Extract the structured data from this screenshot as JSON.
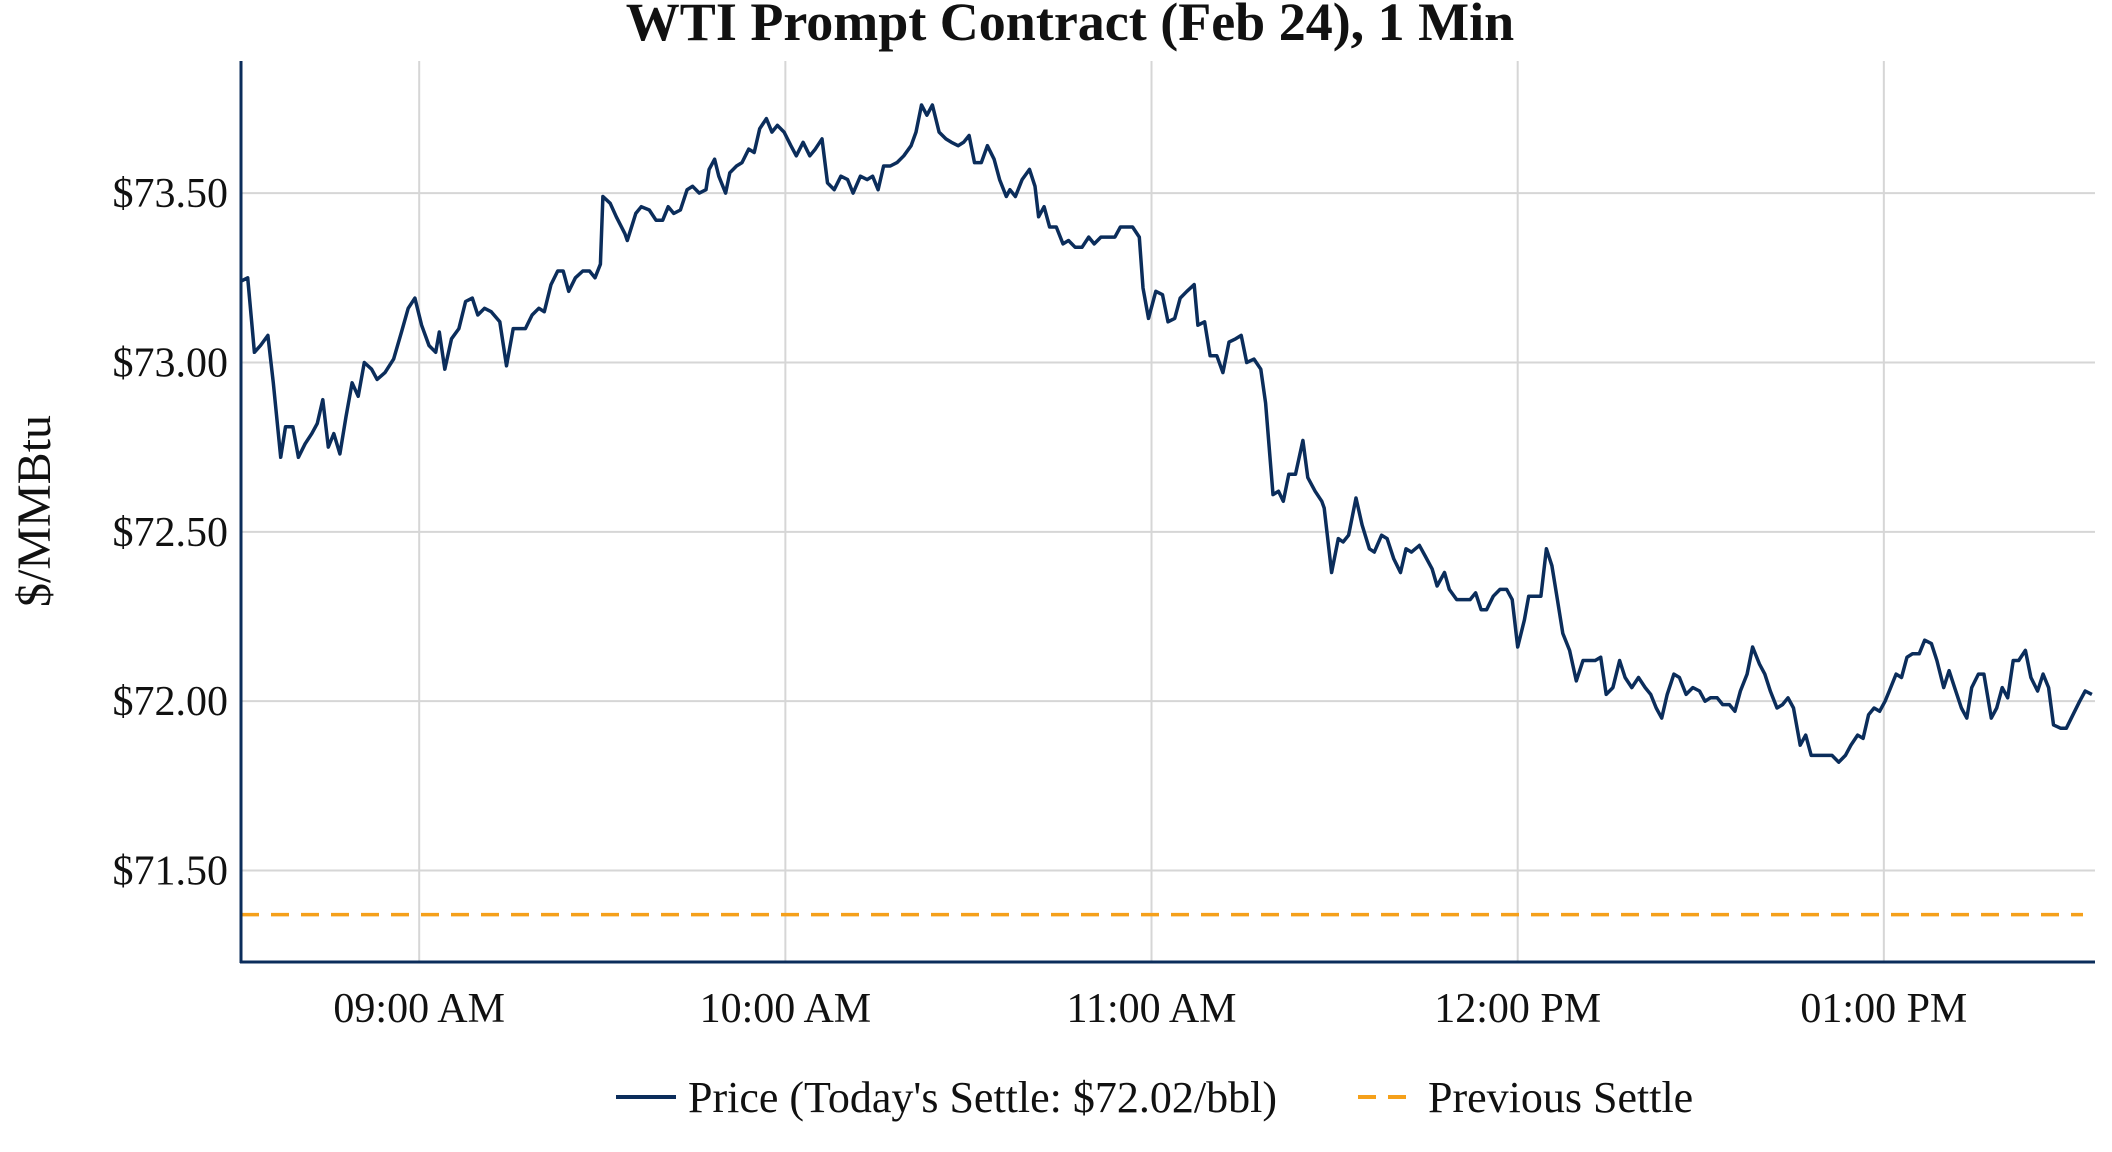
{
  "chart_data": {
    "type": "line",
    "title": "WTI Prompt Contract (Feb 24), 1 Min",
    "xlabel": "",
    "ylabel": "$/MMBtu",
    "x_unit": "minutes after 08:30",
    "xlim": [
      0.8,
      304.6
    ],
    "ylim": [
      71.23,
      73.89
    ],
    "grid": true,
    "legend_position": "bottom-center",
    "x_ticks": [
      {
        "value": 30,
        "label": "09:00 AM"
      },
      {
        "value": 90,
        "label": "10:00 AM"
      },
      {
        "value": 150,
        "label": "11:00 AM"
      },
      {
        "value": 210,
        "label": "12:00 PM"
      },
      {
        "value": 270,
        "label": "01:00 PM"
      }
    ],
    "y_ticks": [
      {
        "value": 71.5,
        "label": "$71.50"
      },
      {
        "value": 72.0,
        "label": "$72.00"
      },
      {
        "value": 72.5,
        "label": "$72.50"
      },
      {
        "value": 73.0,
        "label": "$73.00"
      },
      {
        "value": 73.5,
        "label": "$73.50"
      }
    ],
    "series": [
      {
        "name": "Price (Today's Settle: $72.02/bbl)",
        "color": "#0b2d5b",
        "style": "solid",
        "x": [
          0.8,
          1.9,
          3,
          4,
          5.2,
          6.1,
          7.3,
          8.1,
          9.3,
          10.2,
          11.3,
          12.4,
          13.3,
          14.2,
          15.1,
          16,
          17,
          18,
          19,
          20,
          21,
          22.2,
          23.1,
          24.4,
          25.8,
          27.1,
          28.2,
          29.3,
          30.4,
          31.6,
          32.7,
          33.3,
          34.2,
          35.3,
          36.5,
          37.6,
          38.7,
          39.6,
          40.7,
          41.8,
          43.2,
          44.3,
          45.4,
          46.3,
          47.4,
          48.5,
          49.6,
          50.5,
          51.6,
          52.7,
          53.6,
          54.5,
          55.6,
          56.8,
          57.9,
          58.8,
          59.7,
          60.1,
          61.3,
          62.3,
          63.7,
          64.1,
          65.5,
          66.4,
          67.7,
          68.8,
          69.9,
          70.8,
          71.7,
          72.8,
          73.9,
          74.8,
          75.9,
          77,
          77.5,
          78.4,
          79.1,
          80.2,
          80.9,
          82,
          82.9,
          84,
          84.9,
          85.8,
          86.9,
          87.8,
          88.7,
          89.8,
          90.9,
          91.8,
          92.9,
          94,
          94.9,
          96,
          96.9,
          98,
          99.1,
          100.2,
          101.1,
          102.3,
          103.4,
          104.3,
          105.2,
          106.1,
          107.2,
          108.3,
          109.4,
          110.6,
          111.4,
          112.3,
          113.2,
          114.1,
          115.2,
          116.3,
          117.2,
          118.3,
          119.2,
          120.1,
          121,
          122.1,
          123.1,
          124.2,
          125.1,
          126.2,
          126.8,
          127.7,
          128.8,
          130,
          130.9,
          131.5,
          132.4,
          133.3,
          134.4,
          135.5,
          136.4,
          137.5,
          138.6,
          139.7,
          140.6,
          141.7,
          142.8,
          144,
          144.9,
          146,
          146.9,
          148,
          148.6,
          149.5,
          150.7,
          151.8,
          152.7,
          153.8,
          154.7,
          155.8,
          157,
          157.6,
          158.7,
          159.6,
          160.7,
          161.7,
          162.7,
          163.8,
          164.7,
          165.6,
          166.8,
          167.9,
          168.7,
          169.9,
          170.8,
          171.6,
          172.5,
          173.6,
          174.8,
          175.6,
          176.8,
          177.9,
          178.3,
          179.5,
          180.6,
          181.4,
          182.3,
          183.5,
          184.5,
          185.7,
          186.5,
          187.7,
          188.6,
          189.7,
          190.8,
          191.7,
          192.6,
          193.9,
          194.8,
          196,
          196.8,
          198,
          198.8,
          200,
          201.1,
          202.2,
          203.1,
          204,
          204.9,
          206,
          207.1,
          208.2,
          209.1,
          210,
          211.1,
          211.8,
          212.9,
          213.8,
          214.7,
          215.6,
          216.5,
          217.4,
          218.5,
          219.6,
          220.7,
          221.6,
          222.7,
          223.6,
          224.5,
          225.6,
          226.7,
          227.6,
          228.7,
          229.8,
          230.9,
          231.8,
          232.7,
          233.6,
          234.5,
          235.6,
          236.5,
          237.6,
          238.7,
          239.8,
          240.7,
          241.6,
          242.7,
          243.6,
          244.7,
          245.6,
          246.5,
          247.6,
          248.5,
          249.6,
          250.5,
          251.4,
          252.5,
          253.4,
          254.3,
          255.2,
          256.3,
          257.2,
          258.1,
          259.2,
          260.3,
          261.5,
          262.6,
          263.7,
          264.6,
          265.7,
          266.6,
          267.5,
          268.4,
          269.3,
          270.2,
          270.9,
          272,
          272.9,
          273.8,
          274.7,
          275.8,
          276.7,
          277.8,
          278.7,
          279.8,
          280.7,
          281.6,
          282.7,
          283.6,
          284.4,
          285.5,
          286.4,
          287.6,
          288.5,
          289.4,
          290.3,
          291.2,
          292.1,
          293.2,
          294.1,
          295.2,
          296.1,
          297,
          297.8,
          299,
          299.9,
          301,
          302.1,
          303,
          304.1
        ],
        "y": [
          73.24,
          73.25,
          73.03,
          73.05,
          73.08,
          72.94,
          72.72,
          72.81,
          72.81,
          72.72,
          72.76,
          72.79,
          72.82,
          72.89,
          72.75,
          72.79,
          72.73,
          72.84,
          72.94,
          72.9,
          73.0,
          72.98,
          72.95,
          72.97,
          73.01,
          73.09,
          73.16,
          73.19,
          73.11,
          73.05,
          73.03,
          73.09,
          72.98,
          73.07,
          73.1,
          73.18,
          73.19,
          73.14,
          73.16,
          73.15,
          73.12,
          72.99,
          73.1,
          73.1,
          73.1,
          73.14,
          73.16,
          73.15,
          73.23,
          73.27,
          73.27,
          73.21,
          73.25,
          73.27,
          73.27,
          73.25,
          73.29,
          73.49,
          73.47,
          73.43,
          73.38,
          73.36,
          73.44,
          73.46,
          73.45,
          73.42,
          73.42,
          73.46,
          73.44,
          73.45,
          73.51,
          73.52,
          73.5,
          73.51,
          73.57,
          73.6,
          73.55,
          73.5,
          73.56,
          73.58,
          73.59,
          73.63,
          73.62,
          73.69,
          73.72,
          73.68,
          73.7,
          73.68,
          73.64,
          73.61,
          73.65,
          73.61,
          73.63,
          73.66,
          73.53,
          73.51,
          73.55,
          73.54,
          73.5,
          73.55,
          73.54,
          73.55,
          73.51,
          73.58,
          73.58,
          73.59,
          73.61,
          73.64,
          73.68,
          73.76,
          73.73,
          73.76,
          73.68,
          73.66,
          73.65,
          73.64,
          73.65,
          73.67,
          73.59,
          73.59,
          73.64,
          73.6,
          73.54,
          73.49,
          73.51,
          73.49,
          73.54,
          73.57,
          73.52,
          73.43,
          73.46,
          73.4,
          73.4,
          73.35,
          73.36,
          73.34,
          73.34,
          73.37,
          73.35,
          73.37,
          73.37,
          73.37,
          73.4,
          73.4,
          73.4,
          73.37,
          73.22,
          73.13,
          73.21,
          73.2,
          73.12,
          73.13,
          73.19,
          73.21,
          73.23,
          73.11,
          73.12,
          73.02,
          73.02,
          72.97,
          73.06,
          73.07,
          73.08,
          73.0,
          73.01,
          72.98,
          72.88,
          72.61,
          72.62,
          72.59,
          72.67,
          72.67,
          72.77,
          72.66,
          72.62,
          72.59,
          72.57,
          72.38,
          72.48,
          72.47,
          72.49,
          72.6,
          72.52,
          72.45,
          72.44,
          72.49,
          72.48,
          72.42,
          72.38,
          72.45,
          72.44,
          72.46,
          72.43,
          72.39,
          72.34,
          72.38,
          72.33,
          72.3,
          72.3,
          72.3,
          72.32,
          72.27,
          72.27,
          72.31,
          72.33,
          72.33,
          72.3,
          72.16,
          72.24,
          72.31,
          72.31,
          72.31,
          72.45,
          72.4,
          72.3,
          72.2,
          72.15,
          72.06,
          72.12,
          72.12,
          72.12,
          72.13,
          72.02,
          72.04,
          72.12,
          72.07,
          72.04,
          72.07,
          72.04,
          72.02,
          71.98,
          71.95,
          72.02,
          72.08,
          72.07,
          72.02,
          72.04,
          72.03,
          72.0,
          72.01,
          72.01,
          71.99,
          71.99,
          71.97,
          72.03,
          72.08,
          72.16,
          72.11,
          72.08,
          72.03,
          71.98,
          71.99,
          72.01,
          71.98,
          71.87,
          71.9,
          71.84,
          71.84,
          71.84,
          71.84,
          71.82,
          71.84,
          71.87,
          71.9,
          71.89,
          71.96,
          71.98,
          71.97,
          72.0,
          72.03,
          72.08,
          72.07,
          72.13,
          72.14,
          72.14,
          72.18,
          72.17,
          72.12,
          72.04,
          72.09,
          72.04,
          71.98,
          71.95,
          72.04,
          72.08,
          72.08,
          71.95,
          71.98,
          72.04,
          72.01,
          72.12,
          72.12,
          72.15,
          72.07,
          72.03,
          72.08,
          72.04,
          71.93,
          71.92,
          71.92,
          71.96,
          72.0,
          72.03,
          72.02
        ]
      },
      {
        "name": "Previous Settle",
        "color": "#f5a01a",
        "style": "dashed",
        "value": 71.37
      }
    ]
  }
}
